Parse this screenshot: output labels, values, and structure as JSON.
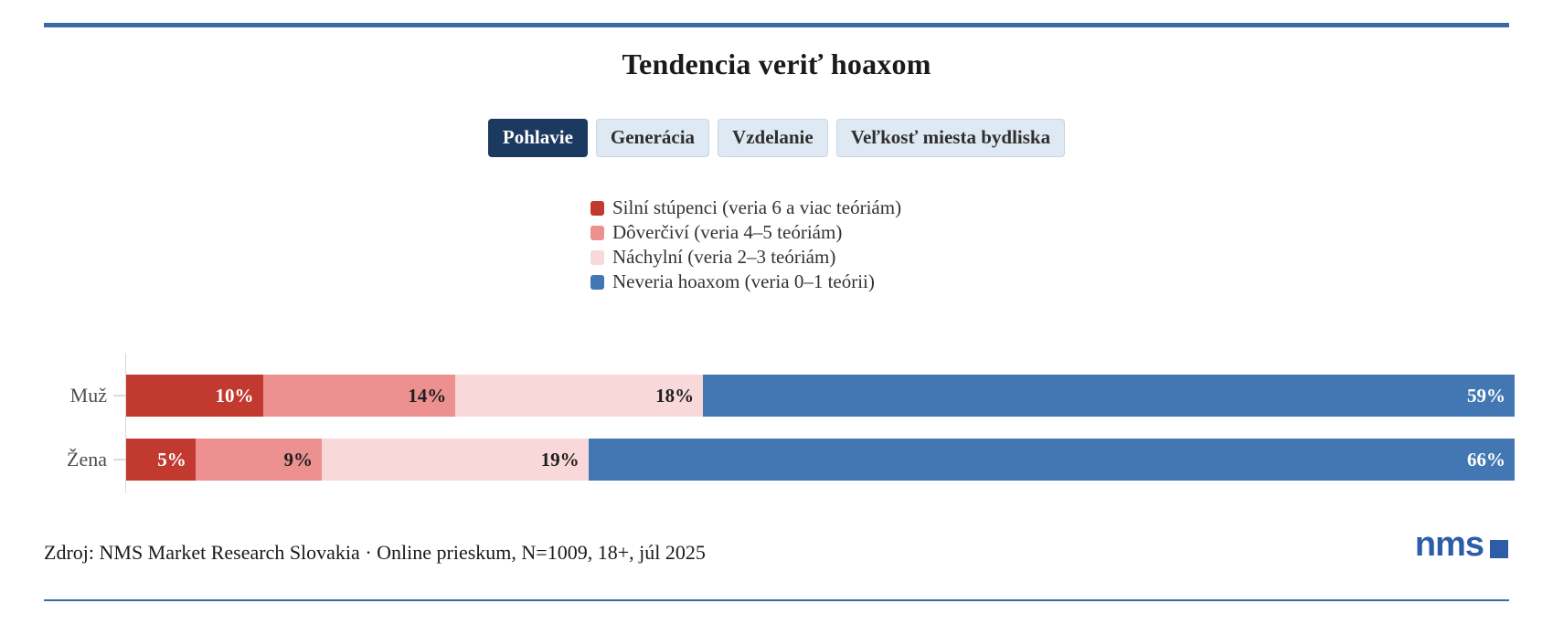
{
  "title": "Tendencia veriť hoaxom",
  "tabs": [
    {
      "label": "Pohlavie",
      "active": true
    },
    {
      "label": "Generácia",
      "active": false
    },
    {
      "label": "Vzdelanie",
      "active": false
    },
    {
      "label": "Veľkosť miesta bydliska",
      "active": false
    }
  ],
  "chart_data": {
    "type": "bar",
    "stacked": true,
    "orientation": "horizontal",
    "title": "Tendencia veriť hoaxom",
    "categories": [
      "Muž",
      "Žena"
    ],
    "series": [
      {
        "name": "Silní stúpenci (veria 6 a viac teóriám)",
        "color": "#c23930",
        "label_color": "#ffffff",
        "values": [
          10,
          5
        ]
      },
      {
        "name": "Dôverčiví (veria 4–5 teóriám)",
        "color": "#ec9090",
        "label_color": "#1f1f1f",
        "values": [
          14,
          9
        ]
      },
      {
        "name": "Náchylní (veria 2–3 teóriám)",
        "color": "#f8d8d8",
        "label_color": "#1f1f1f",
        "values": [
          18,
          19
        ]
      },
      {
        "name": "Neveria hoaxom (veria 0–1 teórii)",
        "color": "#4377b3",
        "label_color": "#ffffff",
        "values": [
          59,
          66
        ]
      }
    ],
    "value_suffix": "%",
    "xlim": [
      0,
      100
    ],
    "grid": false,
    "legend_position": "above-chart-left-aligned"
  },
  "source": "Zdroj: NMS Market Research Slovakia · Online prieskum, N=1009, 18+, júl 2025",
  "logo": {
    "text": "nms"
  },
  "colors": {
    "rule_blue": "#3a6aa5",
    "active_tab": "#1c3a60",
    "inactive_tab_bg": "#dfe9f3",
    "inactive_tab_border": "#c7d6e5",
    "logo_blue": "#2d5da9"
  }
}
